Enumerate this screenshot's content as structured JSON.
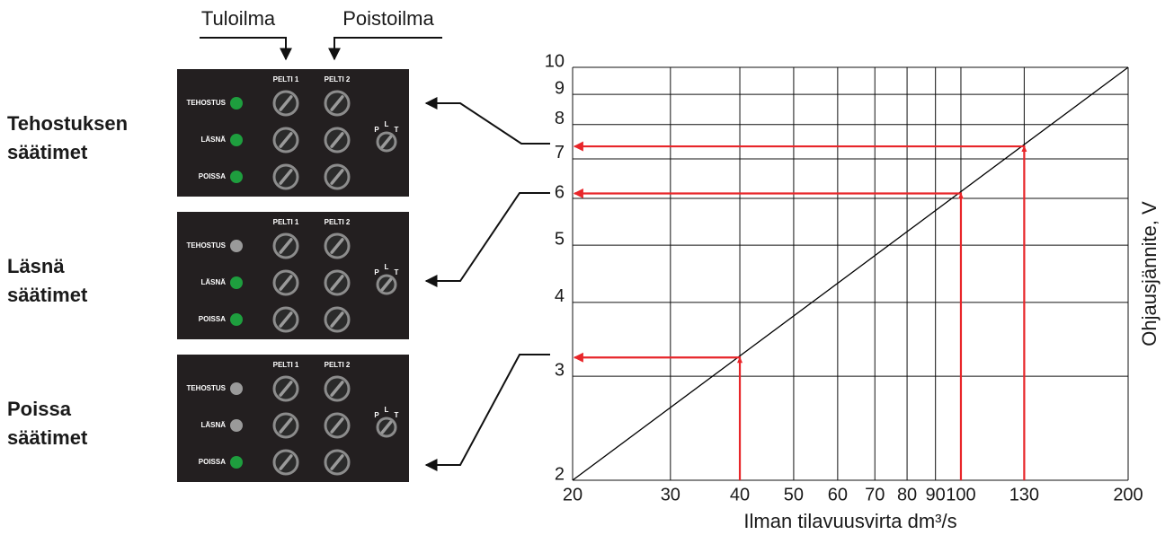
{
  "chart_data": {
    "type": "line",
    "x_label": "Ilman tilavuusvirta dm³/s",
    "y_label": "Ohjausjännite, V",
    "xlim": [
      20,
      200
    ],
    "ylim": [
      2,
      10
    ],
    "log_x": true,
    "log_y": true,
    "grid": true,
    "xticks": [
      20,
      30,
      40,
      50,
      60,
      70,
      80,
      90,
      100,
      130,
      200
    ],
    "yticks": [
      2,
      3,
      4,
      5,
      6,
      7,
      8,
      9,
      10
    ],
    "series": [
      {
        "color": "#000000",
        "x": [
          20,
          200
        ],
        "values": [
          2,
          10
        ]
      },
      {
        "color": "#e8262a",
        "x": [
          40,
          100,
          130
        ],
        "values": [
          3.25,
          6.16,
          7.4
        ]
      }
    ]
  },
  "flow_labels": [
    "Tuloilma",
    "Poistoilma"
  ],
  "controls": {
    "dampers": [
      "PELTI 1",
      "PELTI 2"
    ],
    "modes": [
      "TEHOSTUS",
      "LÄSNÄ",
      "POISSA"
    ],
    "switch": [
      "P",
      "L",
      "T"
    ]
  },
  "panels": [
    {
      "title": [
        "Tehostuksen",
        "säätimet"
      ],
      "leds": [
        "#1e9e3e",
        "#1e9e3e",
        "#1e9e3e"
      ]
    },
    {
      "title": [
        "Läsnä",
        "säätimet"
      ],
      "leds": [
        "#9a9a9a",
        "#1e9e3e",
        "#1e9e3e"
      ]
    },
    {
      "title": [
        "Poissa",
        "säätimet"
      ],
      "leds": [
        "#9a9a9a",
        "#9a9a9a",
        "#1e9e3e"
      ]
    }
  ]
}
